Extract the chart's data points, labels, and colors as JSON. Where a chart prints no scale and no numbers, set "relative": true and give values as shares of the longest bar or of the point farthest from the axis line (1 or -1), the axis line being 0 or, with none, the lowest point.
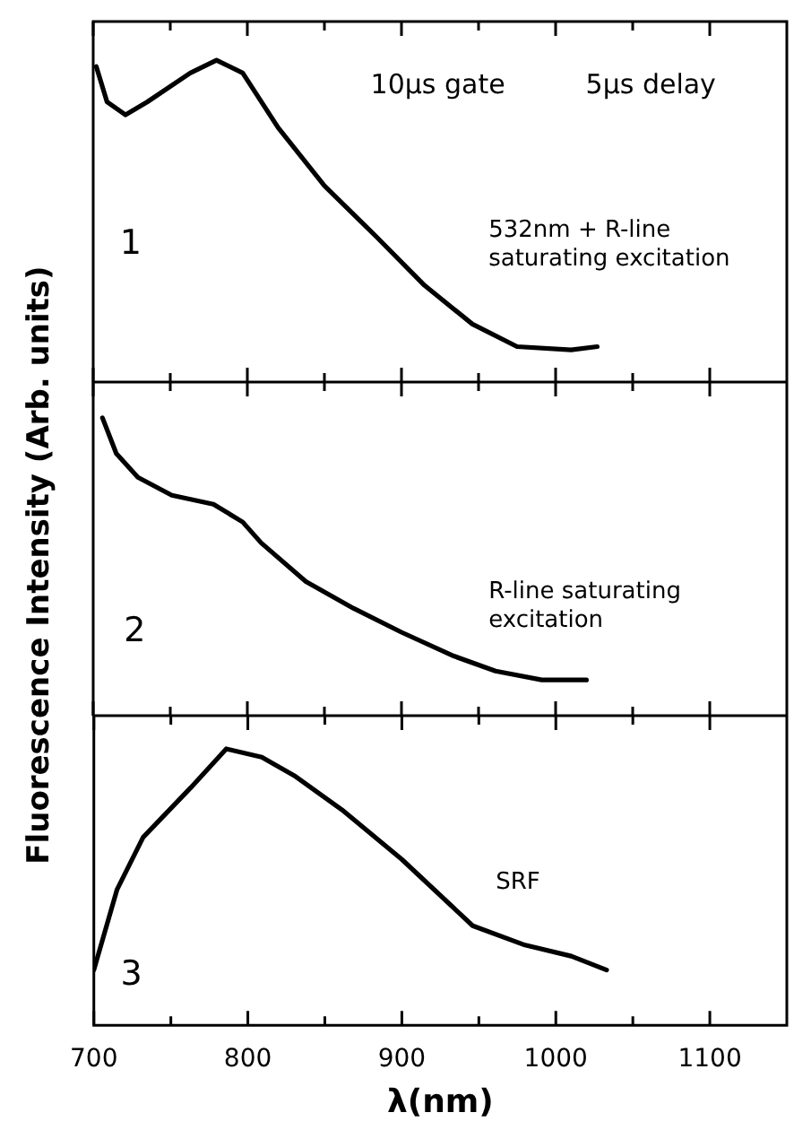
{
  "chart_data": [
    {
      "type": "line",
      "relative": true,
      "color": "#000000",
      "x": [
        702,
        709,
        721,
        735,
        763,
        780,
        797,
        820,
        850,
        884,
        915,
        946,
        975,
        1010,
        1027
      ],
      "values": [
        0.98,
        0.87,
        0.83,
        0.87,
        0.96,
        1,
        0.96,
        0.79,
        0.61,
        0.45,
        0.3,
        0.18,
        0.11,
        0.1,
        0.11
      ],
      "xlim": [
        700,
        1150
      ],
      "xticks": [
        700,
        {
          "value": 750,
          "label": null
        },
        800,
        {
          "value": 850,
          "label": null
        },
        900,
        {
          "value": 950,
          "label": null
        },
        1000,
        {
          "value": 1050,
          "label": null
        },
        1100
      ],
      "tick_labels": false,
      "annotations": [
        "1",
        "10μs gate",
        "5μs delay",
        "532nm + R-line\nsaturating excitation"
      ]
    },
    {
      "type": "line",
      "relative": true,
      "color": "#000000",
      "x": [
        706,
        715,
        729,
        751,
        778,
        797,
        809,
        838,
        869,
        900,
        934,
        961,
        991,
        1020
      ],
      "values": [
        1,
        0.88,
        0.8,
        0.74,
        0.71,
        0.65,
        0.58,
        0.45,
        0.36,
        0.28,
        0.2,
        0.15,
        0.12,
        0.12
      ],
      "xlim": [
        700,
        1150
      ],
      "xticks": [
        700,
        {
          "value": 750,
          "label": null
        },
        800,
        {
          "value": 850,
          "label": null
        },
        900,
        {
          "value": 950,
          "label": null
        },
        1000,
        {
          "value": 1050,
          "label": null
        },
        1100
      ],
      "tick_labels": false,
      "ylabel": "Fluorescence Intensity (Arb. units)",
      "annotations": [
        "2",
        "R-line saturating\nexcitation"
      ]
    },
    {
      "type": "line",
      "relative": true,
      "color": "#000000",
      "x": [
        700,
        715,
        732,
        763,
        786,
        809,
        831,
        861,
        900,
        946,
        980,
        1010,
        1033
      ],
      "values": [
        0.2,
        0.49,
        0.68,
        0.86,
        1,
        0.97,
        0.9,
        0.78,
        0.6,
        0.36,
        0.29,
        0.25,
        0.2
      ],
      "xlim": [
        700,
        1150
      ],
      "xticks": [
        700,
        {
          "value": 750,
          "label": null
        },
        800,
        {
          "value": 850,
          "label": null
        },
        900,
        {
          "value": 950,
          "label": null
        },
        1000,
        {
          "value": 1050,
          "label": null
        },
        1100
      ],
      "xlabel": "λ(nm)",
      "annotations": [
        "3",
        "SRF"
      ]
    }
  ]
}
